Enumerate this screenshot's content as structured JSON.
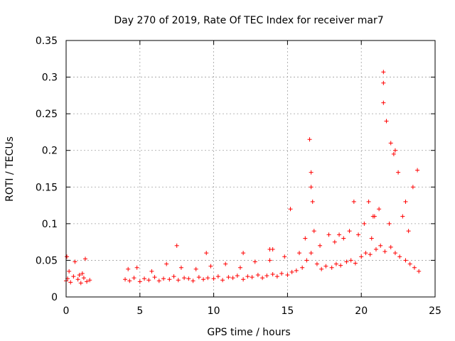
{
  "chart_data": {
    "type": "scatter",
    "title": "Day 270 of 2019, Rate Of TEC Index for receiver mar7",
    "xlabel": "GPS time / hours",
    "ylabel": "ROTI / TECUs",
    "xlim": [
      0,
      25
    ],
    "ylim": [
      0,
      0.35
    ],
    "xticks": [
      0,
      5,
      10,
      15,
      20,
      25
    ],
    "yticks": [
      0,
      0.05,
      0.1,
      0.15,
      0.2,
      0.25,
      0.3,
      0.35
    ],
    "xtick_labels": [
      "0",
      "5",
      "10",
      "15",
      "20",
      "25"
    ],
    "ytick_labels": [
      "0",
      "0.05",
      "0.1",
      "0.15",
      "0.2",
      "0.25",
      "0.3",
      "0.35"
    ],
    "grid": true,
    "marker": "+",
    "color": "#ff0000",
    "series": [
      {
        "name": "ROTI",
        "x": [
          0.0,
          0.1,
          0.3,
          0.5,
          0.8,
          1.0,
          1.2,
          1.4,
          1.6,
          0.05,
          0.6,
          1.3,
          4.0,
          4.3,
          4.6,
          5.0,
          5.3,
          5.6,
          6.0,
          6.3,
          6.6,
          7.0,
          7.3,
          7.6,
          8.0,
          8.3,
          8.6,
          9.0,
          9.3,
          9.6,
          10.0,
          10.3,
          10.6,
          11.0,
          11.3,
          11.6,
          12.0,
          12.3,
          12.6,
          13.0,
          13.3,
          13.6,
          14.0,
          14.3,
          14.6,
          15.0,
          15.3,
          15.6,
          16.0,
          16.3,
          16.6,
          17.0,
          17.3,
          17.6,
          18.0,
          18.3,
          18.6,
          19.0,
          19.3,
          19.6,
          20.0,
          20.3,
          20.6,
          21.0,
          21.3,
          21.6,
          22.0,
          22.3,
          22.6,
          23.0,
          23.3,
          23.6,
          23.9,
          7.5,
          9.5,
          12.0,
          13.8,
          14.0,
          15.2,
          16.5,
          16.6,
          16.6,
          16.7,
          18.5,
          19.5,
          20.5,
          20.7,
          20.8,
          21.5,
          21.5,
          21.5,
          21.7,
          22.0,
          22.2,
          22.3,
          22.5,
          23.0,
          23.5,
          23.8,
          0.2,
          0.9,
          1.1,
          4.2,
          4.8,
          5.8,
          6.8,
          7.8,
          8.8,
          9.8,
          10.8,
          11.8,
          12.8,
          13.8,
          14.8,
          15.8,
          16.2,
          16.8,
          17.2,
          17.8,
          18.2,
          18.8,
          19.2,
          19.8,
          20.2,
          20.9,
          21.2,
          21.9,
          22.8,
          23.2
        ],
        "y": [
          0.022,
          0.025,
          0.02,
          0.028,
          0.024,
          0.019,
          0.026,
          0.021,
          0.023,
          0.055,
          0.048,
          0.052,
          0.024,
          0.022,
          0.026,
          0.021,
          0.025,
          0.023,
          0.027,
          0.022,
          0.025,
          0.024,
          0.028,
          0.023,
          0.026,
          0.025,
          0.022,
          0.027,
          0.024,
          0.026,
          0.025,
          0.028,
          0.023,
          0.027,
          0.026,
          0.029,
          0.024,
          0.028,
          0.027,
          0.03,
          0.026,
          0.029,
          0.031,
          0.028,
          0.032,
          0.03,
          0.034,
          0.036,
          0.04,
          0.05,
          0.06,
          0.045,
          0.038,
          0.042,
          0.04,
          0.045,
          0.043,
          0.048,
          0.05,
          0.046,
          0.055,
          0.06,
          0.058,
          0.065,
          0.07,
          0.062,
          0.068,
          0.06,
          0.055,
          0.05,
          0.045,
          0.04,
          0.035,
          0.07,
          0.06,
          0.06,
          0.065,
          0.065,
          0.12,
          0.215,
          0.17,
          0.15,
          0.13,
          0.085,
          0.13,
          0.13,
          0.08,
          0.11,
          0.307,
          0.292,
          0.265,
          0.24,
          0.21,
          0.195,
          0.2,
          0.17,
          0.13,
          0.15,
          0.173,
          0.035,
          0.03,
          0.032,
          0.038,
          0.04,
          0.035,
          0.045,
          0.04,
          0.038,
          0.042,
          0.045,
          0.04,
          0.048,
          0.05,
          0.055,
          0.06,
          0.08,
          0.09,
          0.07,
          0.085,
          0.075,
          0.08,
          0.09,
          0.085,
          0.1,
          0.11,
          0.12,
          0.1,
          0.11,
          0.09
        ]
      }
    ]
  }
}
